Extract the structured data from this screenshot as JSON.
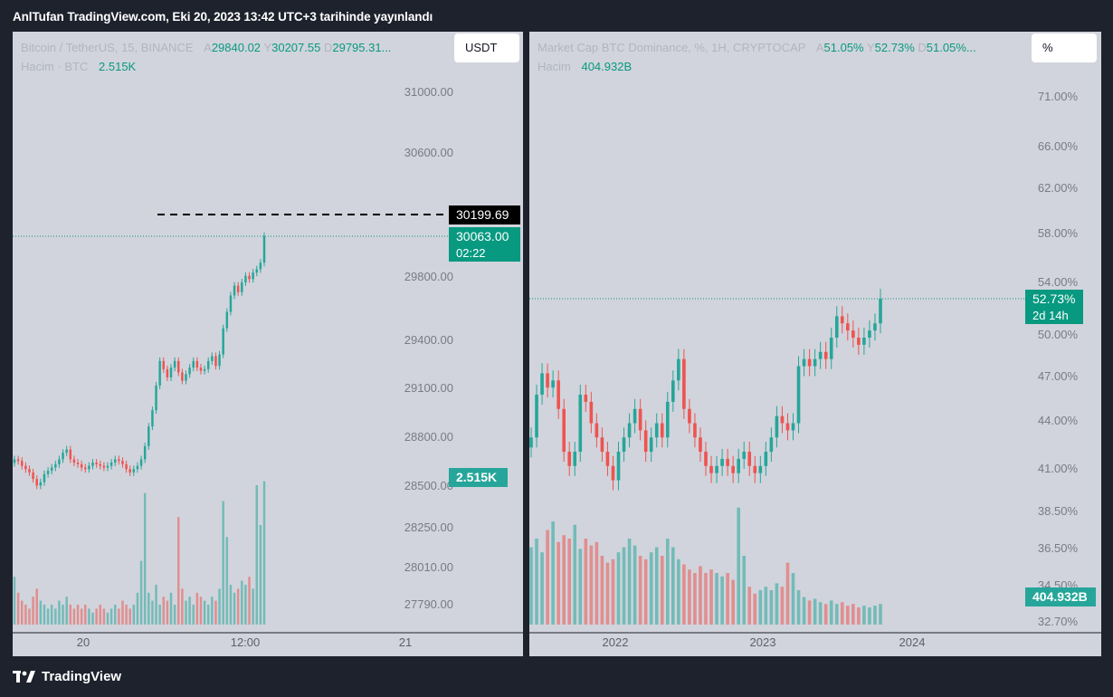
{
  "header": {
    "title": "AnlTufan TradingView.com, Eki 20, 2023 13:42 UTC+3 tarihinde yayınlandı"
  },
  "footer": {
    "brand": "TradingView",
    "logo_icon": "tradingview-logo-icon"
  },
  "colors": {
    "up": "#26a69a",
    "down": "#ef5350",
    "accent": "#089981",
    "panel_bg": "#d1d4dc",
    "app_bg": "#1e222d"
  },
  "left_panel": {
    "symbol": "Bitcoin / TetherUS, 15, BINANCE",
    "ohlc": [
      {
        "key": "A",
        "value": "29840.02"
      },
      {
        "key": "Y",
        "value": "30207.55"
      },
      {
        "key": "D",
        "value": "29795.31..."
      }
    ],
    "volume_label": "Hacim · BTC",
    "volume_value": "2.515K",
    "unit_button": "USDT",
    "high_marker": "30199.69",
    "last_price": "30063.00",
    "countdown": "02:22",
    "volume_badge": "2.515K"
  },
  "right_panel": {
    "symbol": "Market Cap BTC Dominance, %, 1H, CRYPTOCAP",
    "ohlc": [
      {
        "key": "A",
        "value": "51.05%"
      },
      {
        "key": "Y",
        "value": "52.73%"
      },
      {
        "key": "D",
        "value": "51.05%..."
      }
    ],
    "volume_label": "Hacim",
    "volume_value": "404.932B",
    "unit_button": "%",
    "last_price": "52.73%",
    "countdown": "2d 14h",
    "volume_badge": "404.932B"
  },
  "chart_data": [
    {
      "type": "candlestick",
      "title": "Bitcoin / TetherUS, 15, BINANCE",
      "y_ticks": [
        "31000.00",
        "30600.00",
        "29800.00",
        "29400.00",
        "29100.00",
        "28800.00",
        "28500.00",
        "28250.00",
        "28010.00",
        "27790.00"
      ],
      "x_ticks": [
        "20",
        "12:00",
        "21"
      ],
      "log_scale": true,
      "last_price": 30063.0,
      "session_high": 30199.69,
      "close_series": [
        28700,
        28690,
        28660,
        28640,
        28620,
        28580,
        28540,
        28560,
        28610,
        28630,
        28650,
        28670,
        28700,
        28740,
        28760,
        28700,
        28680,
        28670,
        28650,
        28640,
        28660,
        28680,
        28670,
        28660,
        28650,
        28660,
        28680,
        28700,
        28690,
        28670,
        28640,
        28620,
        28640,
        28660,
        28700,
        28780,
        28900,
        29000,
        29150,
        29300,
        29250,
        29200,
        29260,
        29300,
        29230,
        29180,
        29220,
        29260,
        29300,
        29260,
        29240,
        29250,
        29300,
        29330,
        29270,
        29340,
        29500,
        29600,
        29700,
        29760,
        29720,
        29780,
        29820,
        29800,
        29840,
        29860,
        29900,
        30063
      ],
      "volume_series": [
        0.12,
        0.08,
        0.06,
        0.05,
        0.04,
        0.07,
        0.09,
        0.06,
        0.05,
        0.04,
        0.05,
        0.04,
        0.06,
        0.05,
        0.07,
        0.05,
        0.04,
        0.05,
        0.04,
        0.05,
        0.04,
        0.03,
        0.04,
        0.05,
        0.04,
        0.03,
        0.04,
        0.05,
        0.04,
        0.06,
        0.05,
        0.04,
        0.05,
        0.08,
        0.16,
        0.33,
        0.08,
        0.06,
        0.1,
        0.05,
        0.07,
        0.06,
        0.08,
        0.05,
        0.27,
        0.09,
        0.06,
        0.07,
        0.05,
        0.08,
        0.07,
        0.06,
        0.05,
        0.07,
        0.06,
        0.09,
        0.31,
        0.22,
        0.1,
        0.08,
        0.09,
        0.11,
        0.1,
        0.12,
        0.09,
        0.35,
        0.25,
        0.36
      ]
    },
    {
      "type": "candlestick",
      "title": "Market Cap BTC Dominance, %, 1H, CRYPTOCAP",
      "y_ticks": [
        "71.00%",
        "66.00%",
        "62.00%",
        "58.00%",
        "54.00%",
        "50.00%",
        "47.00%",
        "44.00%",
        "41.00%",
        "38.50%",
        "36.50%",
        "34.50%",
        "32.70%"
      ],
      "x_ticks": [
        "2022",
        "2023",
        "2024"
      ],
      "log_scale": true,
      "last_price": 52.73,
      "close_series": [
        43,
        46,
        47.5,
        46.5,
        47,
        45,
        42,
        41,
        42,
        46,
        45.5,
        44,
        43,
        42,
        41,
        40,
        42,
        43,
        44,
        45,
        43.5,
        42,
        43,
        44,
        43,
        45.5,
        47,
        48.5,
        45,
        44,
        43,
        42,
        41,
        40.5,
        41,
        41.5,
        41,
        40.5,
        41.5,
        42,
        41,
        40.5,
        41,
        42,
        43,
        44.5,
        44,
        43.5,
        44,
        48,
        48.5,
        48,
        48.5,
        49,
        48.5,
        50,
        51.5,
        51,
        50.5,
        50,
        49.5,
        50,
        50.5,
        51,
        52.73
      ],
      "volume_series": [
        0.45,
        0.5,
        0.42,
        0.55,
        0.6,
        0.48,
        0.52,
        0.5,
        0.58,
        0.44,
        0.5,
        0.46,
        0.48,
        0.4,
        0.36,
        0.38,
        0.42,
        0.45,
        0.5,
        0.46,
        0.4,
        0.38,
        0.42,
        0.45,
        0.4,
        0.5,
        0.45,
        0.38,
        0.35,
        0.32,
        0.3,
        0.34,
        0.3,
        0.32,
        0.3,
        0.28,
        0.3,
        0.26,
        0.68,
        0.4,
        0.22,
        0.18,
        0.2,
        0.22,
        0.2,
        0.24,
        0.22,
        0.36,
        0.3,
        0.2,
        0.16,
        0.14,
        0.15,
        0.13,
        0.12,
        0.14,
        0.12,
        0.13,
        0.11,
        0.12,
        0.1,
        0.11,
        0.1,
        0.11,
        0.12
      ]
    }
  ]
}
